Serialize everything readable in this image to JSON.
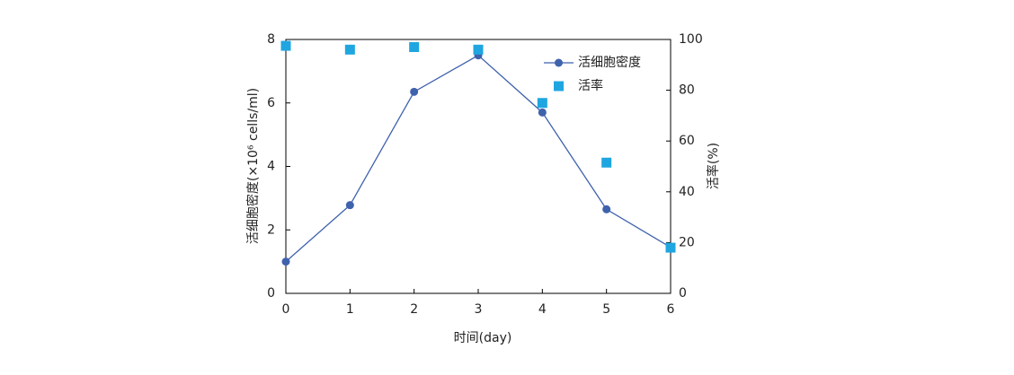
{
  "chart_data": {
    "type": "line",
    "x_label": "时间(day)",
    "y_label": "活细胞密度(×10⁶ cells/ml)",
    "y2_label": "活率(%)",
    "x": [
      0,
      1,
      2,
      3,
      4,
      5,
      6
    ],
    "xlim": [
      0,
      6
    ],
    "xticks": [
      0,
      1,
      2,
      3,
      4,
      5,
      6
    ],
    "ylim": [
      0,
      8
    ],
    "yticks": [
      0,
      2,
      4,
      6,
      8
    ],
    "y2lim": [
      0,
      100
    ],
    "y2ticks": [
      0,
      20,
      40,
      60,
      80,
      100
    ],
    "legend": "upper right",
    "series": [
      {
        "name": "活细胞密度",
        "color": "#3f62ad",
        "marker": "circle",
        "line": true,
        "values": [
          1.0,
          2.78,
          6.35,
          7.5,
          5.7,
          2.65,
          1.45
        ]
      },
      {
        "name": "活率",
        "color": "#1fa6e0",
        "marker": "square",
        "line": false,
        "axis": "y2",
        "values": [
          97.5,
          96,
          97,
          96,
          75,
          51.5,
          18
        ]
      }
    ]
  }
}
